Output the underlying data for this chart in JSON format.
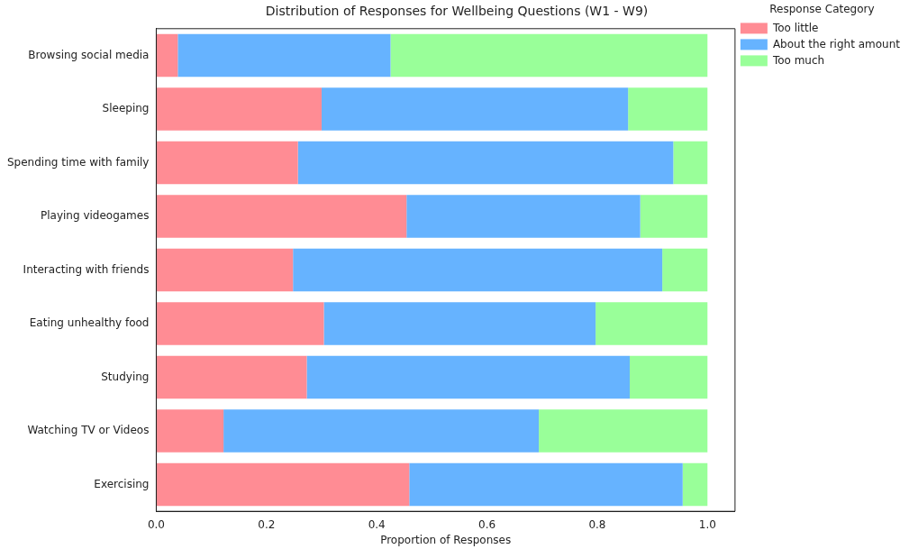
{
  "chart_data": {
    "type": "bar",
    "orientation": "horizontal",
    "stacked": true,
    "title": "Distribution of Responses for Wellbeing Questions (W1 - W9)",
    "xlabel": "Proportion of Responses",
    "legend_title": "Response Category",
    "legend": "top right",
    "grid": false,
    "categories": [
      "Browsing social media",
      "Sleeping",
      "Spending time with family",
      "Playing videogames",
      "Interacting with friends",
      "Eating unhealthy food",
      "Studying",
      "Watching TV or Videos",
      "Exercising"
    ],
    "xlim": [
      0,
      1.05
    ],
    "xticks": [
      {
        "value": 0,
        "label": "0.0"
      },
      0.2,
      0.4,
      0.6,
      0.8,
      {
        "value": 1,
        "label": "1.0"
      }
    ],
    "series": [
      {
        "name": "Too little",
        "color": "#ff8c94",
        "values": [
          0.039,
          0.3,
          0.257,
          0.454,
          0.248,
          0.304,
          0.273,
          0.122,
          0.459
        ]
      },
      {
        "name": "About the right amount",
        "color": "#66b3ff",
        "values": [
          0.386,
          0.556,
          0.681,
          0.424,
          0.67,
          0.493,
          0.586,
          0.572,
          0.496
        ]
      },
      {
        "name": "Too much",
        "color": "#99ff99",
        "values": [
          0.575,
          0.144,
          0.062,
          0.122,
          0.082,
          0.203,
          0.141,
          0.306,
          0.045
        ]
      }
    ]
  }
}
